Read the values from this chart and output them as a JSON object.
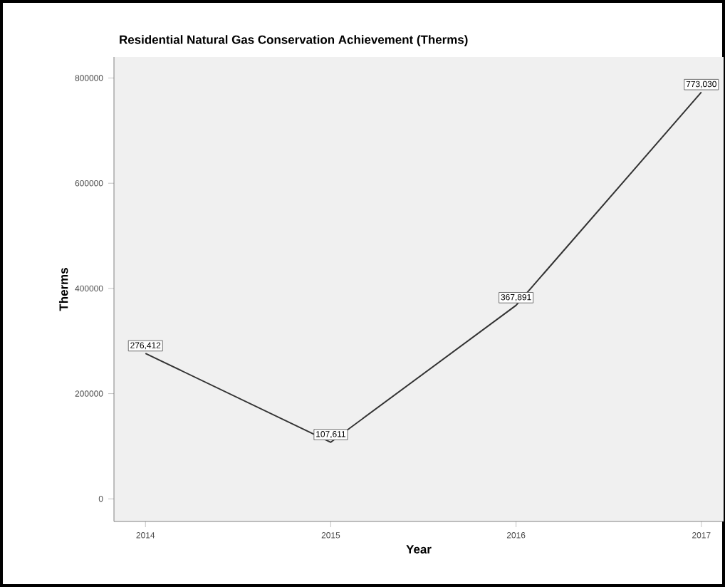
{
  "chart_data": {
    "type": "line",
    "title": "Residential Natural Gas Conservation Achievement (Therms)",
    "xlabel": "Year",
    "ylabel": "Therms",
    "categories": [
      "2014",
      "2015",
      "2016",
      "2017"
    ],
    "series": [
      {
        "color": "#333333",
        "values": [
          276412,
          107611,
          367891,
          773030
        ],
        "value_labels": [
          "276,412",
          "107,611",
          "367,891",
          "773,030"
        ]
      }
    ],
    "ylim": [
      -43000,
      840000
    ],
    "yticks": [
      0,
      200000,
      400000,
      600000,
      800000
    ],
    "line_style": "solid"
  }
}
